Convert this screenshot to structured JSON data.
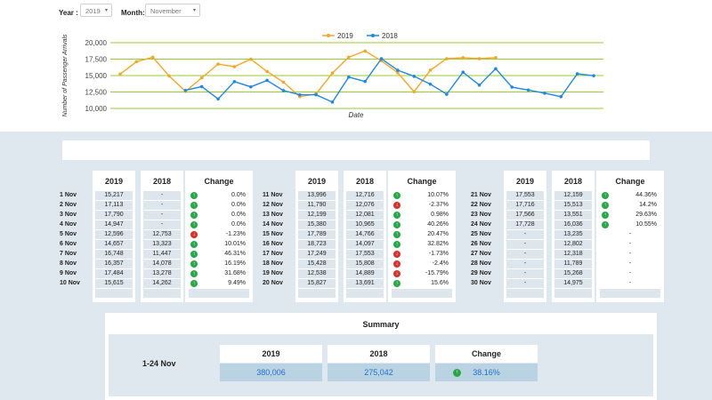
{
  "filters": {
    "year_label": "Year :",
    "year_value": "2019",
    "month_label": "Month:",
    "month_value": "November",
    "caret": "▾"
  },
  "chart_data": {
    "type": "line",
    "title": "",
    "xlabel": "Date",
    "ylabel": "Number of Passenger Arrivals",
    "y_ticks": [
      "20,000",
      "17,500",
      "15,000",
      "12,500",
      "10,000"
    ],
    "ylim": [
      10000,
      20000
    ],
    "grid": true,
    "legend_position": "top-center",
    "series": [
      {
        "name": "2019",
        "color": "#f5a623",
        "values": [
          15217,
          17113,
          17790,
          14947,
          12596,
          14657,
          16748,
          16357,
          17484,
          15615,
          13996,
          11790,
          12199,
          15380,
          17789,
          18723,
          17249,
          15428,
          12538,
          15827,
          17553,
          17716,
          17566,
          17728,
          null,
          null,
          null,
          null,
          null,
          null
        ]
      },
      {
        "name": "2018",
        "color": "#1e88e5",
        "values": [
          null,
          null,
          null,
          null,
          12753,
          13323,
          11447,
          14078,
          13278,
          14262,
          12716,
          12076,
          12081,
          10965,
          14766,
          14097,
          17553,
          15808,
          14889,
          13691,
          12159,
          15513,
          13551,
          16036,
          13235,
          12802,
          12318,
          11789,
          15268,
          14975
        ]
      }
    ]
  },
  "groups": [
    {
      "rows": [
        {
          "date": "1 Nov",
          "v2019": "15,217",
          "v2018": "-",
          "change": "0.0%",
          "dir": "up"
        },
        {
          "date": "2 Nov",
          "v2019": "17,113",
          "v2018": "-",
          "change": "0.0%",
          "dir": "up"
        },
        {
          "date": "3 Nov",
          "v2019": "17,790",
          "v2018": "-",
          "change": "0.0%",
          "dir": "up"
        },
        {
          "date": "4 Nov",
          "v2019": "14,947",
          "v2018": "-",
          "change": "0.0%",
          "dir": "up"
        },
        {
          "date": "5 Nov",
          "v2019": "12,596",
          "v2018": "12,753",
          "change": "-1.23%",
          "dir": "down"
        },
        {
          "date": "6 Nov",
          "v2019": "14,657",
          "v2018": "13,323",
          "change": "10.01%",
          "dir": "up"
        },
        {
          "date": "7 Nov",
          "v2019": "16,748",
          "v2018": "11,447",
          "change": "46.31%",
          "dir": "up"
        },
        {
          "date": "8 Nov",
          "v2019": "16,357",
          "v2018": "14,078",
          "change": "16.19%",
          "dir": "up"
        },
        {
          "date": "9 Nov",
          "v2019": "17,484",
          "v2018": "13,278",
          "change": "31.68%",
          "dir": "up"
        },
        {
          "date": "10 Nov",
          "v2019": "15,615",
          "v2018": "14,262",
          "change": "9.49%",
          "dir": "up"
        }
      ]
    },
    {
      "rows": [
        {
          "date": "11 Nov",
          "v2019": "13,996",
          "v2018": "12,716",
          "change": "10.07%",
          "dir": "up"
        },
        {
          "date": "12 Nov",
          "v2019": "11,790",
          "v2018": "12,076",
          "change": "-2.37%",
          "dir": "down"
        },
        {
          "date": "13 Nov",
          "v2019": "12,199",
          "v2018": "12,081",
          "change": "0.98%",
          "dir": "up"
        },
        {
          "date": "14 Nov",
          "v2019": "15,380",
          "v2018": "10,965",
          "change": "40.26%",
          "dir": "up"
        },
        {
          "date": "15 Nov",
          "v2019": "17,789",
          "v2018": "14,766",
          "change": "20.47%",
          "dir": "up"
        },
        {
          "date": "16 Nov",
          "v2019": "18,723",
          "v2018": "14,097",
          "change": "32.82%",
          "dir": "up"
        },
        {
          "date": "17 Nov",
          "v2019": "17,249",
          "v2018": "17,553",
          "change": "-1.73%",
          "dir": "down"
        },
        {
          "date": "18 Nov",
          "v2019": "15,428",
          "v2018": "15,808",
          "change": "-2.4%",
          "dir": "down"
        },
        {
          "date": "19 Nov",
          "v2019": "12,538",
          "v2018": "14,889",
          "change": "-15.79%",
          "dir": "down"
        },
        {
          "date": "20 Nov",
          "v2019": "15,827",
          "v2018": "13,691",
          "change": "15.6%",
          "dir": "up"
        }
      ]
    },
    {
      "rows": [
        {
          "date": "21 Nov",
          "v2019": "17,553",
          "v2018": "12,159",
          "change": "44.36%",
          "dir": "up"
        },
        {
          "date": "22 Nov",
          "v2019": "17,716",
          "v2018": "15,513",
          "change": "14.2%",
          "dir": "up"
        },
        {
          "date": "23 Nov",
          "v2019": "17,566",
          "v2018": "13,551",
          "change": "29.63%",
          "dir": "up"
        },
        {
          "date": "24 Nov",
          "v2019": "17,728",
          "v2018": "16,036",
          "change": "10.55%",
          "dir": "up"
        },
        {
          "date": "25 Nov",
          "v2019": "-",
          "v2018": "13,235",
          "change": "-",
          "dir": ""
        },
        {
          "date": "26 Nov",
          "v2019": "-",
          "v2018": "12,802",
          "change": "-",
          "dir": ""
        },
        {
          "date": "27 Nov",
          "v2019": "-",
          "v2018": "12,318",
          "change": "-",
          "dir": ""
        },
        {
          "date": "28 Nov",
          "v2019": "-",
          "v2018": "11,789",
          "change": "-",
          "dir": ""
        },
        {
          "date": "29 Nov",
          "v2019": "-",
          "v2018": "15,268",
          "change": "-",
          "dir": ""
        },
        {
          "date": "30 Nov",
          "v2019": "-",
          "v2018": "14,975",
          "change": "-",
          "dir": ""
        }
      ]
    }
  ],
  "table_headers": {
    "y2019": "2019",
    "y2018": "2018",
    "change": "Change"
  },
  "summary": {
    "title": "Summary",
    "period": "1-24 Nov",
    "head_2019": "2019",
    "head_2018": "2018",
    "head_change": "Change",
    "val_2019": "380,006",
    "val_2018": "275,042",
    "val_change": "38.16%",
    "change_dir": "up"
  },
  "colors": {
    "up": "#27a844",
    "down": "#d9302c",
    "panel": "#dfe8ee",
    "grid": "#9acd32"
  }
}
